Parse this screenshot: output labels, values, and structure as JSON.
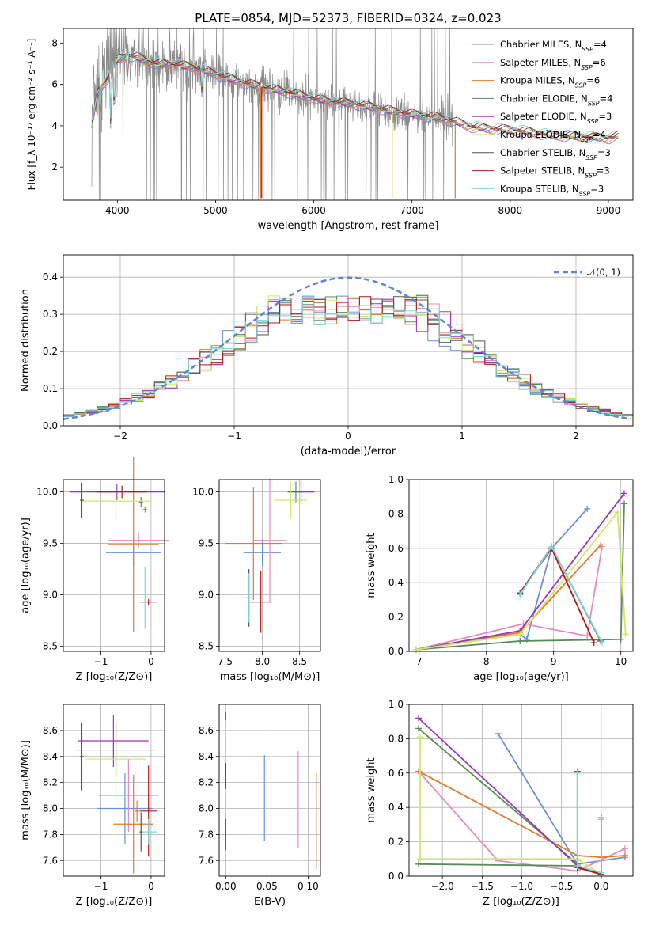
{
  "colors": {
    "chabrier_miles": "#6a8fd8",
    "salpeter_miles": "#e58ac0",
    "kroupa_miles": "#e07b2e",
    "chabrier_elodie": "#5a8a5a",
    "salpeter_elodie": "#9a35b8",
    "kroupa_elodie": "#cfe864",
    "chabrier_stelib": "#555555",
    "salpeter_stelib": "#b01818",
    "kroupa_stelib": "#7fd8d8",
    "data": "#8a8a8a",
    "gauss": "#5b86d6"
  },
  "chart_data": [
    {
      "id": "spectrum",
      "type": "line",
      "title": "PLATE=0854, MJD=52373, FIBERID=0324, z=0.023",
      "xlabel": "wavelength [Angstrom, rest frame]",
      "ylabel": "Flux [f_λ 10⁻¹⁷ erg cm⁻² s⁻¹ A⁻¹]",
      "xlim": [
        3450,
        9250
      ],
      "ylim": [
        0.4,
        8.7
      ],
      "xticks": [
        "4000",
        "5000",
        "6000",
        "7000",
        "8000",
        "9000"
      ],
      "yticks": [
        "2",
        "4",
        "6",
        "8"
      ],
      "legend_position": "top-right",
      "legend": [
        {
          "label": "Chabrier MILES, N",
          "sub": "SSP",
          "tail": "=4",
          "color_key": "chabrier_miles"
        },
        {
          "label": "Salpeter MILES, N",
          "sub": "SSP",
          "tail": "=6",
          "color_key": "salpeter_miles"
        },
        {
          "label": "Kroupa MILES, N",
          "sub": "SSP",
          "tail": "=6",
          "color_key": "kroupa_miles"
        },
        {
          "label": "Chabrier ELODIE, N",
          "sub": "SSP",
          "tail": "=4",
          "color_key": "chabrier_elodie"
        },
        {
          "label": "Salpeter ELODIE, N",
          "sub": "SSP",
          "tail": "=3",
          "color_key": "salpeter_elodie"
        },
        {
          "label": "Kroupa ELODIE, N",
          "sub": "SSP",
          "tail": "=4",
          "color_key": "kroupa_elodie"
        },
        {
          "label": "Chabrier STELIB, N",
          "sub": "SSP",
          "tail": "=3",
          "color_key": "chabrier_stelib"
        },
        {
          "label": "Salpeter STELIB, N",
          "sub": "SSP",
          "tail": "=3",
          "color_key": "salpeter_stelib"
        },
        {
          "label": "Kroupa STELIB, N",
          "sub": "SSP",
          "tail": "=3",
          "color_key": "kroupa_stelib"
        }
      ],
      "continuum": [
        [
          3740,
          4.0
        ],
        [
          3800,
          5.6
        ],
        [
          3900,
          6.3
        ],
        [
          4000,
          7.2
        ],
        [
          4100,
          7.4
        ],
        [
          4200,
          7.3
        ],
        [
          4400,
          7.0
        ],
        [
          4600,
          6.95
        ],
        [
          4800,
          6.8
        ],
        [
          5000,
          6.5
        ],
        [
          5200,
          6.2
        ],
        [
          5400,
          5.95
        ],
        [
          5600,
          5.75
        ],
        [
          5800,
          5.55
        ],
        [
          6000,
          5.3
        ],
        [
          6200,
          5.15
        ],
        [
          6400,
          5.05
        ],
        [
          6600,
          4.9
        ],
        [
          6800,
          4.7
        ],
        [
          7000,
          4.55
        ],
        [
          7200,
          4.45
        ],
        [
          7400,
          4.25
        ],
        [
          7600,
          3.95
        ],
        [
          7800,
          3.85
        ],
        [
          8000,
          3.8
        ],
        [
          8200,
          3.7
        ],
        [
          8400,
          3.55
        ],
        [
          8600,
          3.5
        ],
        [
          8800,
          3.45
        ],
        [
          9000,
          3.4
        ],
        [
          9100,
          3.5
        ]
      ],
      "model_dips": [
        [
          3825,
          1.2
        ],
        [
          3934,
          3.0
        ],
        [
          3968,
          2.6
        ],
        [
          4102,
          1.2
        ],
        [
          4861,
          1.2
        ],
        [
          5460,
          1.6
        ]
      ],
      "line_drops": [
        {
          "x": 5460,
          "y": 0.5,
          "color_key": "kroupa_miles"
        },
        {
          "x": 5470,
          "y": 0.5,
          "color_key": "salpeter_stelib"
        },
        {
          "x": 6800,
          "y": 0.5,
          "color_key": "kroupa_elodie"
        },
        {
          "x": 7440,
          "y": 0.5,
          "color_key": "kroupa_miles"
        }
      ],
      "data_x_range": [
        3740,
        7420
      ],
      "model_x_range": [
        3740,
        9100
      ]
    },
    {
      "id": "residuals",
      "type": "line",
      "xlabel": "(data-model)/error",
      "ylabel": "Normed distribution",
      "xlim": [
        -2.5,
        2.5
      ],
      "ylim": [
        0,
        0.46
      ],
      "xticks": [
        "−2",
        "−1",
        "0",
        "1",
        "2"
      ],
      "yticks": [
        "0.0",
        "0.1",
        "0.2",
        "0.3",
        "0.4"
      ],
      "legend_position": "top-right",
      "legend_label": "𝒩(0, 1)",
      "bin_width": 0.1
    },
    {
      "id": "age_vs_Z",
      "type": "scatter",
      "xlabel": "Z [log₁₀(Z/Z⊙)]",
      "ylabel": "age  [log₁₀(age/yr)]",
      "xlim": [
        -1.75,
        0.27
      ],
      "ylim": [
        8.45,
        10.12
      ],
      "xticks": [
        "−1",
        "0"
      ],
      "yticks": [
        "8.5",
        "9.0",
        "9.5",
        "10.0"
      ],
      "points": [
        {
          "x": -0.35,
          "y": 9.41,
          "xerr": 0.55,
          "yerr": 0.13,
          "color_key": "chabrier_miles"
        },
        {
          "x": -0.25,
          "y": 9.53,
          "xerr": 0.6,
          "yerr": 0.08,
          "color_key": "salpeter_miles"
        },
        {
          "x": -0.35,
          "y": 9.49,
          "xerr": 0.5,
          "yerr": 0.85,
          "color_key": "kroupa_miles"
        },
        {
          "x": -0.12,
          "y": 9.83,
          "xerr": 0.04,
          "yerr": 0.03,
          "color_key": "kroupa_miles"
        },
        {
          "x": -0.2,
          "y": 9.9,
          "xerr": 0.04,
          "yerr": 0.05,
          "color_key": "chabrier_elodie"
        },
        {
          "x": -0.68,
          "y": 10.0,
          "xerr": 0.95,
          "yerr": 0.08,
          "color_key": "salpeter_elodie"
        },
        {
          "x": -0.7,
          "y": 9.91,
          "xerr": 0.7,
          "yerr": 0.2,
          "color_key": "kroupa_elodie"
        },
        {
          "x": -1.38,
          "y": 9.92,
          "xerr": 0.04,
          "yerr": 0.17,
          "color_key": "chabrier_stelib"
        },
        {
          "x": -0.58,
          "y": 10.0,
          "xerr": 0.5,
          "yerr": 0.06,
          "color_key": "salpeter_stelib"
        },
        {
          "x": -0.05,
          "y": 8.93,
          "xerr": 0.18,
          "yerr": 0.03,
          "color_key": "salpeter_stelib"
        },
        {
          "x": -0.12,
          "y": 8.97,
          "xerr": 0.18,
          "yerr": 0.3,
          "color_key": "kroupa_stelib"
        }
      ]
    },
    {
      "id": "age_vs_mass",
      "type": "scatter",
      "xlabel": "mass [log₁₀(M/M⊙)]",
      "ylabel": "",
      "xlim": [
        7.42,
        8.78
      ],
      "ylim": [
        8.45,
        10.12
      ],
      "xticks": [
        "7.5",
        "8.0",
        "8.5"
      ],
      "yticks": [
        "8.5",
        "9.0",
        "9.5",
        "10.0"
      ],
      "points": [
        {
          "x": 8.0,
          "y": 9.41,
          "xerr": 0.25,
          "yerr": 0.13,
          "color_key": "chabrier_miles"
        },
        {
          "x": 8.1,
          "y": 9.53,
          "xerr": 0.22,
          "yerr": 0.6,
          "color_key": "salpeter_miles"
        },
        {
          "x": 7.88,
          "y": 9.5,
          "xerr": 0.38,
          "yerr": 0.55,
          "color_key": "kroupa_miles"
        },
        {
          "x": 8.45,
          "y": 10.0,
          "xerr": 0.1,
          "yerr": 0.1,
          "color_key": "chabrier_elodie"
        },
        {
          "x": 8.52,
          "y": 10.0,
          "xerr": 0.18,
          "yerr": 0.12,
          "color_key": "salpeter_elodie"
        },
        {
          "x": 8.38,
          "y": 9.92,
          "xerr": 0.22,
          "yerr": 0.18,
          "color_key": "kroupa_elodie"
        },
        {
          "x": 7.82,
          "y": 8.97,
          "xerr": 0.04,
          "yerr": 0.28,
          "color_key": "chabrier_stelib"
        },
        {
          "x": 7.98,
          "y": 8.93,
          "xerr": 0.15,
          "yerr": 0.3,
          "color_key": "salpeter_stelib"
        },
        {
          "x": 7.82,
          "y": 8.97,
          "xerr": 0.16,
          "yerr": 0.24,
          "color_key": "kroupa_stelib"
        }
      ]
    },
    {
      "id": "weight_vs_age",
      "type": "line",
      "xlabel": "age  [log₁₀(age/yr)]",
      "ylabel": "mass weight",
      "xlim": [
        6.85,
        10.18
      ],
      "ylim": [
        0,
        1.0
      ],
      "xticks": [
        "7",
        "8",
        "9",
        "10"
      ],
      "yticks": [
        "0.0",
        "0.2",
        "0.4",
        "0.6",
        "0.8",
        "1.0"
      ],
      "series": [
        {
          "color_key": "chabrier_miles",
          "x": [
            6.95,
            8.5,
            8.6,
            8.97,
            9.5
          ],
          "y": [
            0.01,
            0.1,
            0.07,
            0.6,
            0.83
          ]
        },
        {
          "color_key": "salpeter_miles",
          "x": [
            6.95,
            8.55,
            9.5,
            9.72
          ],
          "y": [
            0.01,
            0.16,
            0.09,
            0.61
          ]
        },
        {
          "color_key": "kroupa_miles",
          "x": [
            6.95,
            8.5,
            9.7
          ],
          "y": [
            0.01,
            0.11,
            0.62
          ]
        },
        {
          "color_key": "chabrier_elodie",
          "x": [
            6.95,
            8.5,
            10.0,
            10.05
          ],
          "y": [
            0.01,
            0.06,
            0.07,
            0.86
          ]
        },
        {
          "color_key": "salpeter_elodie",
          "x": [
            6.95,
            8.5,
            10.05
          ],
          "y": [
            0.01,
            0.12,
            0.92
          ]
        },
        {
          "color_key": "kroupa_elodie",
          "x": [
            6.95,
            8.5,
            9.95,
            10.07
          ],
          "y": [
            0.01,
            0.1,
            0.81,
            0.1
          ]
        },
        {
          "color_key": "chabrier_stelib",
          "x": [
            8.5,
            8.97,
            9.7
          ],
          "y": [
            0.34,
            0.61,
            0.06
          ]
        },
        {
          "color_key": "salpeter_stelib",
          "x": [
            8.5,
            8.97,
            9.6
          ],
          "y": [
            0.34,
            0.6,
            0.05
          ]
        },
        {
          "color_key": "kroupa_stelib",
          "x": [
            8.5,
            8.97,
            9.72
          ],
          "y": [
            0.33,
            0.61,
            0.05
          ]
        }
      ]
    },
    {
      "id": "mass_vs_Z",
      "type": "scatter",
      "xlabel": "Z [log₁₀(Z/Z⊙)]",
      "ylabel": "mass [log₁₀(M/M⊙)]",
      "xlim": [
        -1.75,
        0.27
      ],
      "ylim": [
        7.48,
        8.8
      ],
      "xticks": [
        "−1",
        "0"
      ],
      "yticks": [
        "7.6",
        "7.8",
        "8.0",
        "8.2",
        "8.4",
        "8.6"
      ],
      "points": [
        {
          "x": -0.52,
          "y": 8.0,
          "xerr": 0.55,
          "yerr": 0.27,
          "color_key": "chabrier_miles"
        },
        {
          "x": -0.45,
          "y": 8.1,
          "xerr": 0.6,
          "yerr": 0.28,
          "color_key": "salpeter_miles"
        },
        {
          "x": -0.35,
          "y": 7.88,
          "xerr": 0.4,
          "yerr": 0.38,
          "color_key": "kroupa_miles"
        },
        {
          "x": -0.28,
          "y": 7.98,
          "xerr": 0.04,
          "yerr": 0.08,
          "color_key": "kroupa_miles"
        },
        {
          "x": -0.7,
          "y": 8.45,
          "xerr": 0.8,
          "yerr": 0.2,
          "color_key": "chabrier_elodie"
        },
        {
          "x": -0.75,
          "y": 8.52,
          "xerr": 0.7,
          "yerr": 0.2,
          "color_key": "salpeter_elodie"
        },
        {
          "x": -0.7,
          "y": 8.38,
          "xerr": 0.6,
          "yerr": 0.3,
          "color_key": "kroupa_elodie"
        },
        {
          "x": -1.38,
          "y": 8.4,
          "xerr": 0.04,
          "yerr": 0.26,
          "color_key": "chabrier_stelib"
        },
        {
          "x": -0.05,
          "y": 7.98,
          "xerr": 0.18,
          "yerr": 0.35,
          "color_key": "salpeter_stelib"
        },
        {
          "x": -0.05,
          "y": 7.82,
          "xerr": 0.18,
          "yerr": 0.1,
          "color_key": "kroupa_stelib"
        },
        {
          "x": -0.2,
          "y": 7.82,
          "xerr": 0.03,
          "yerr": 0.15,
          "color_key": "chabrier_stelib"
        }
      ]
    },
    {
      "id": "mass_vs_ebv",
      "type": "scatter",
      "xlabel": "E(B-V)",
      "ylabel": "",
      "xlim": [
        -0.008,
        0.115
      ],
      "ylim": [
        7.48,
        8.8
      ],
      "xticks": [
        "0.00",
        "0.05",
        "0.10"
      ],
      "yticks": [
        "7.6",
        "7.8",
        "8.0",
        "8.2",
        "8.4",
        "8.6"
      ],
      "points": [
        {
          "x": 0.047,
          "y": 8.08,
          "xerr": 0,
          "yerr": 0.33,
          "color_key": "chabrier_miles"
        },
        {
          "x": 0.088,
          "y": 8.07,
          "xerr": 0,
          "yerr": 0.37,
          "color_key": "salpeter_miles"
        },
        {
          "x": 0.11,
          "y": 7.9,
          "xerr": 0,
          "yerr": 0.37,
          "color_key": "kroupa_miles"
        },
        {
          "x": 0.0,
          "y": 8.45,
          "xerr": 0,
          "yerr": 0.25,
          "color_key": "chabrier_elodie"
        },
        {
          "x": 0.0,
          "y": 8.52,
          "xerr": 0,
          "yerr": 0.22,
          "color_key": "salpeter_elodie"
        },
        {
          "x": 0.0,
          "y": 8.38,
          "xerr": 0,
          "yerr": 0.3,
          "color_key": "kroupa_elodie"
        },
        {
          "x": 0.0,
          "y": 8.25,
          "xerr": 0,
          "yerr": 0.1,
          "color_key": "salpeter_stelib"
        },
        {
          "x": 0.0,
          "y": 7.9,
          "xerr": 0,
          "yerr": 0.22,
          "color_key": "kroupa_stelib"
        },
        {
          "x": 0.0,
          "y": 7.8,
          "xerr": 0,
          "yerr": 0.12,
          "color_key": "chabrier_stelib"
        }
      ]
    },
    {
      "id": "weight_vs_Z",
      "type": "line",
      "xlabel": "Z [log₁₀(Z/Z⊙)]",
      "ylabel": "mass weight",
      "xlim": [
        -2.42,
        0.4
      ],
      "ylim": [
        0,
        1.0
      ],
      "xticks": [
        "−2.0",
        "−1.5",
        "−1.0",
        "−0.5",
        "0.0"
      ],
      "yticks": [
        "0.0",
        "0.2",
        "0.4",
        "0.6",
        "0.8",
        "1.0"
      ],
      "series": [
        {
          "color_key": "chabrier_miles",
          "x": [
            -1.3,
            -0.3,
            0.3
          ],
          "y": [
            0.83,
            0.07,
            0.11
          ]
        },
        {
          "color_key": "salpeter_miles",
          "x": [
            -2.3,
            -1.3,
            -0.3,
            0.3
          ],
          "y": [
            0.61,
            0.09,
            0.03,
            0.16
          ]
        },
        {
          "color_key": "kroupa_miles",
          "x": [
            -2.3,
            -0.3,
            0.0,
            0.3
          ],
          "y": [
            0.61,
            0.12,
            0.11,
            0.12
          ]
        },
        {
          "color_key": "chabrier_elodie",
          "x": [
            -2.3,
            -0.3,
            -0.3,
            -2.3
          ],
          "y": [
            0.86,
            0.07,
            0.06,
            0.07
          ]
        },
        {
          "color_key": "salpeter_elodie",
          "x": [
            -2.3,
            -0.3,
            0.0
          ],
          "y": [
            0.92,
            0.06,
            0.01
          ]
        },
        {
          "color_key": "kroupa_elodie",
          "x": [
            -2.28,
            -2.28,
            -0.3,
            0.0
          ],
          "y": [
            0.81,
            0.1,
            0.1,
            0.01
          ]
        },
        {
          "color_key": "chabrier_stelib",
          "x": [
            -0.3,
            -0.3,
            0.0,
            0.0
          ],
          "y": [
            0.61,
            0.05,
            0.02,
            0.34
          ]
        },
        {
          "color_key": "salpeter_stelib",
          "x": [
            -0.3,
            0.0,
            0.0
          ],
          "y": [
            0.05,
            0.01,
            0.33
          ]
        },
        {
          "color_key": "kroupa_stelib",
          "x": [
            -0.3,
            -0.3,
            0.0,
            0.0
          ],
          "y": [
            0.6,
            0.06,
            0.02,
            0.33
          ]
        }
      ]
    }
  ]
}
